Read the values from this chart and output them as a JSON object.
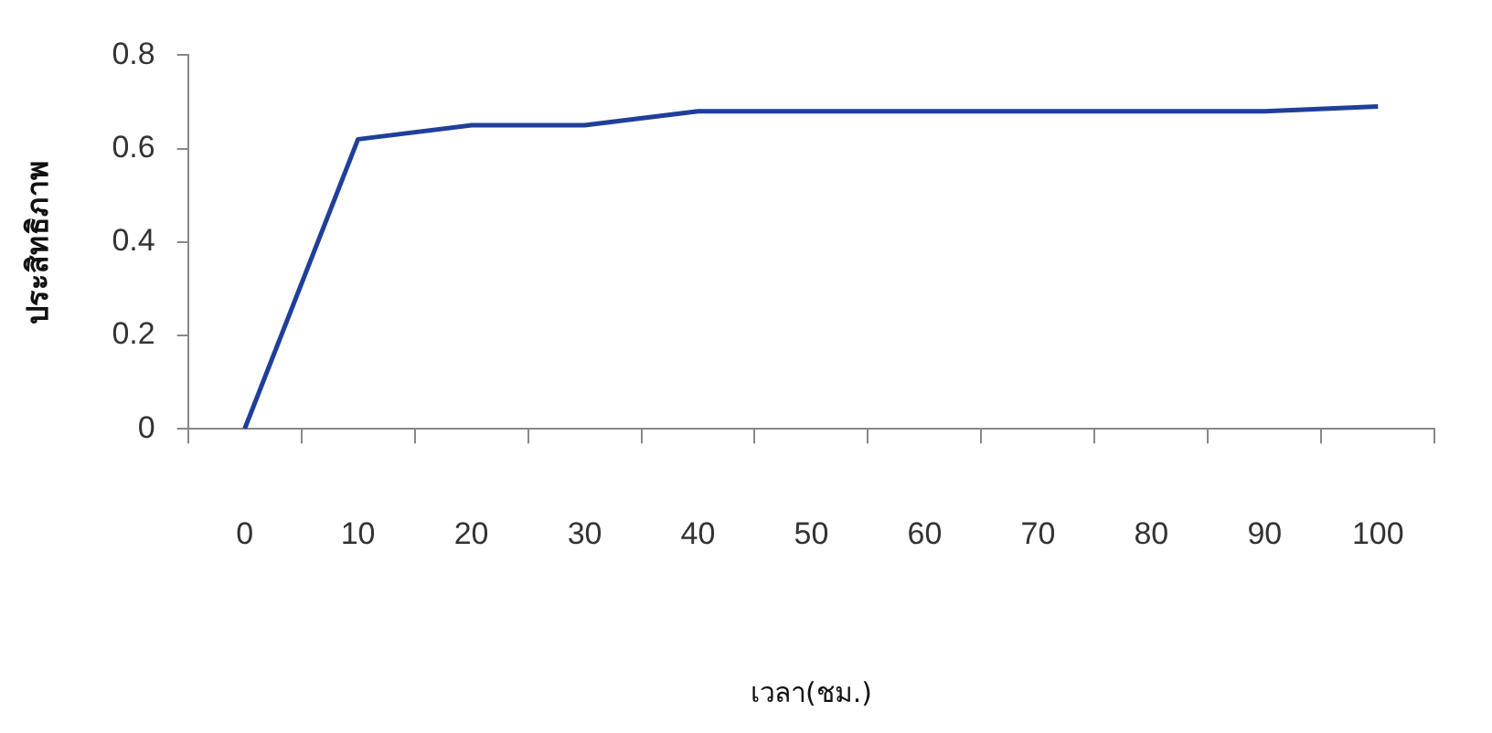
{
  "chart_data": {
    "type": "line",
    "xlabel": "เวลา(ชม.)",
    "ylabel": "ประสิทธิภาพ",
    "categories": [
      "0",
      "10",
      "20",
      "30",
      "40",
      "50",
      "60",
      "70",
      "80",
      "90",
      "100"
    ],
    "series": [
      {
        "color": "#1f3f9a",
        "values": [
          0,
          0.62,
          0.65,
          0.65,
          0.68,
          0.68,
          0.68,
          0.68,
          0.68,
          0.68,
          0.69
        ]
      }
    ],
    "ylim": [
      0,
      0.8
    ],
    "yticks": [
      0,
      0.2,
      0.4,
      0.6,
      0.8
    ],
    "grid": false,
    "legend": false,
    "marker": "none",
    "line_style": "solid"
  }
}
